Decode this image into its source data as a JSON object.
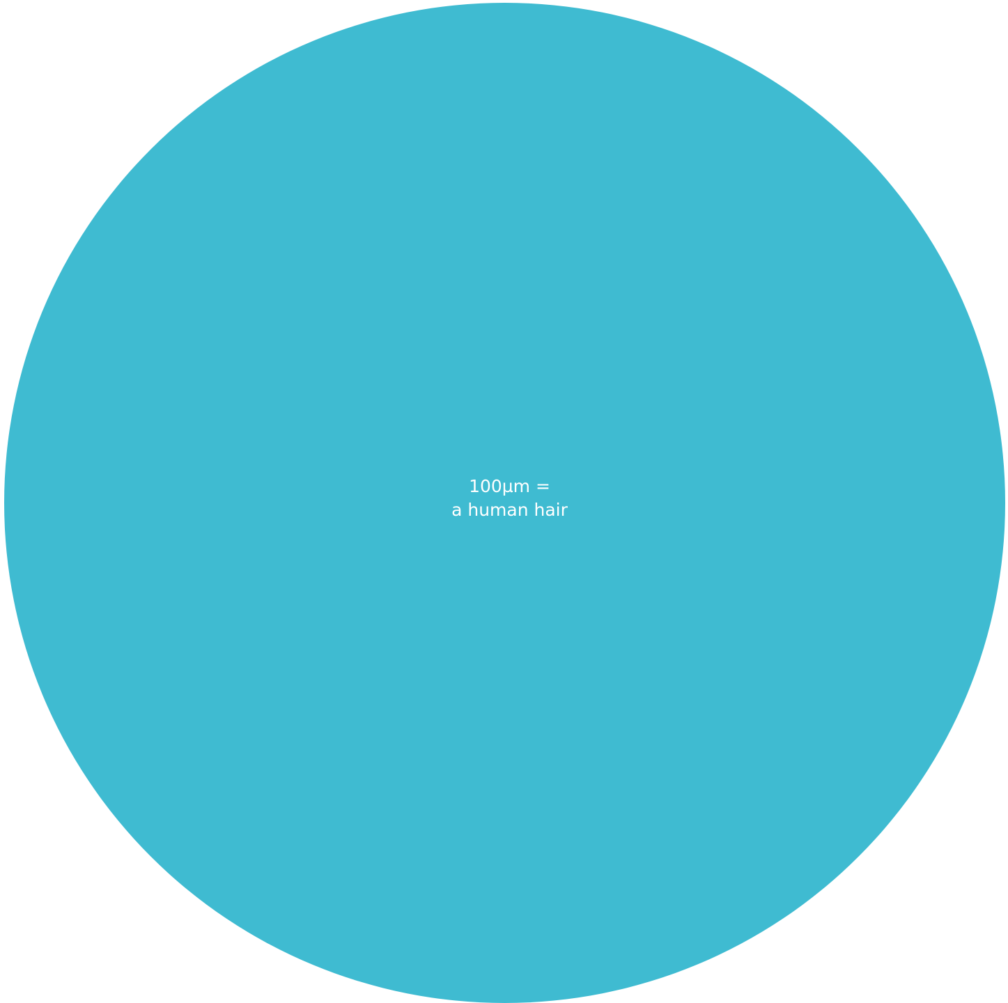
{
  "diagram": {
    "circle_color": "#3fbbd1",
    "label_line1": "100µm =",
    "label_line2": "a human hair"
  }
}
